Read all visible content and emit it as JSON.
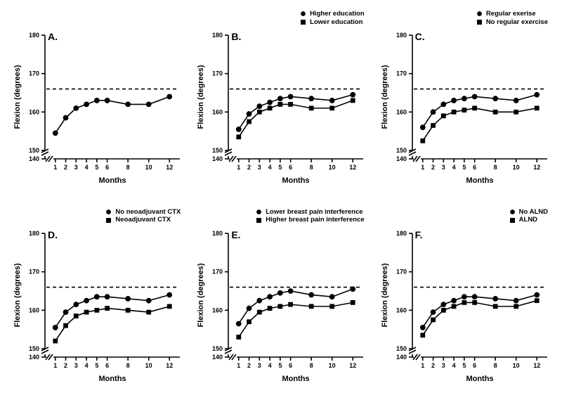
{
  "global": {
    "background_color": "#ffffff",
    "line_color": "#000000",
    "grid_cols": 3,
    "grid_rows": 2,
    "panel_letter_fontsize": 14,
    "legend_fontsize": 9.5,
    "axis_label_fontsize": 11,
    "tick_fontsize": 9,
    "font_weight": "bold",
    "xlabel": "Months",
    "ylabel": "Flexion (degrees)",
    "y": {
      "lim": [
        140,
        180
      ],
      "ticks": [
        140,
        150,
        160,
        170,
        180
      ],
      "break_between": [
        140,
        150
      ],
      "break_style": "double-slash",
      "reference_line": 166,
      "reference_dash": "5,4"
    },
    "x": {
      "lim": [
        0,
        13
      ],
      "ticks": [
        1,
        2,
        3,
        4,
        5,
        6,
        8,
        10,
        12
      ],
      "labels": [
        "1",
        "2",
        "3",
        "4",
        "5",
        "6",
        "8",
        "10",
        "12"
      ]
    },
    "marker_size": 3.4,
    "line_width": 1.6
  },
  "panels": [
    {
      "letter": "A.",
      "legend": null,
      "series": [
        {
          "marker": "circle",
          "label": null,
          "x": [
            1,
            2,
            3,
            4,
            5,
            6,
            8,
            10,
            12
          ],
          "y": [
            154.5,
            158.5,
            161,
            162,
            163,
            163,
            162,
            162,
            164
          ]
        }
      ]
    },
    {
      "letter": "B.",
      "legend": {
        "items": [
          {
            "marker": "circle",
            "label": "Higher education"
          },
          {
            "marker": "square",
            "label": "Lower education"
          }
        ]
      },
      "series": [
        {
          "marker": "circle",
          "label": "Higher education",
          "x": [
            1,
            2,
            3,
            4,
            5,
            6,
            8,
            10,
            12
          ],
          "y": [
            155.5,
            159.5,
            161.5,
            162.5,
            163.5,
            164,
            163.5,
            163,
            164.5
          ]
        },
        {
          "marker": "square",
          "label": "Lower education",
          "x": [
            1,
            2,
            3,
            4,
            5,
            6,
            8,
            10,
            12
          ],
          "y": [
            153.5,
            157.5,
            160,
            161,
            162,
            162,
            161,
            161,
            163
          ]
        }
      ]
    },
    {
      "letter": "C.",
      "legend": {
        "items": [
          {
            "marker": "circle",
            "label": "Regular exerise"
          },
          {
            "marker": "square",
            "label": "No regular exercise"
          }
        ]
      },
      "series": [
        {
          "marker": "circle",
          "label": "Regular exerise",
          "x": [
            1,
            2,
            3,
            4,
            5,
            6,
            8,
            10,
            12
          ],
          "y": [
            156,
            160,
            162,
            163,
            163.5,
            164,
            163.5,
            163,
            164.5
          ]
        },
        {
          "marker": "square",
          "label": "No regular exercise",
          "x": [
            1,
            2,
            3,
            4,
            5,
            6,
            8,
            10,
            12
          ],
          "y": [
            152.5,
            156.5,
            159,
            160,
            160.5,
            161,
            160,
            160,
            161
          ]
        }
      ]
    },
    {
      "letter": "D.",
      "legend": {
        "items": [
          {
            "marker": "circle",
            "label": "No neoadjuvant CTX"
          },
          {
            "marker": "square",
            "label": "Neoadjuvant CTX"
          }
        ]
      },
      "series": [
        {
          "marker": "circle",
          "label": "No neoadjuvant CTX",
          "x": [
            1,
            2,
            3,
            4,
            5,
            6,
            8,
            10,
            12
          ],
          "y": [
            155.5,
            159.5,
            161.5,
            162.5,
            163.5,
            163.5,
            163,
            162.5,
            164
          ]
        },
        {
          "marker": "square",
          "label": "Neoadjuvant CTX",
          "x": [
            1,
            2,
            3,
            4,
            5,
            6,
            8,
            10,
            12
          ],
          "y": [
            152,
            156,
            158.5,
            159.5,
            160,
            160.5,
            160,
            159.5,
            161
          ]
        }
      ]
    },
    {
      "letter": "E.",
      "legend": {
        "items": [
          {
            "marker": "circle",
            "label": "Lower breast pain interference"
          },
          {
            "marker": "square",
            "label": "Higher breast pain interference"
          }
        ]
      },
      "series": [
        {
          "marker": "circle",
          "label": "Lower breast pain interference",
          "x": [
            1,
            2,
            3,
            4,
            5,
            6,
            8,
            10,
            12
          ],
          "y": [
            156.5,
            160.5,
            162.5,
            163.5,
            164.5,
            165,
            164,
            163.5,
            165.5
          ]
        },
        {
          "marker": "square",
          "label": "Higher breast pain interference",
          "x": [
            1,
            2,
            3,
            4,
            5,
            6,
            8,
            10,
            12
          ],
          "y": [
            153,
            157,
            159.5,
            160.5,
            161,
            161.5,
            161,
            161,
            162
          ]
        }
      ]
    },
    {
      "letter": "F.",
      "legend": {
        "items": [
          {
            "marker": "circle",
            "label": "No ALND"
          },
          {
            "marker": "square",
            "label": "ALND"
          }
        ]
      },
      "series": [
        {
          "marker": "circle",
          "label": "No ALND",
          "x": [
            1,
            2,
            3,
            4,
            5,
            6,
            8,
            10,
            12
          ],
          "y": [
            155.5,
            159.5,
            161.5,
            162.5,
            163.5,
            163.5,
            163,
            162.5,
            164
          ]
        },
        {
          "marker": "square",
          "label": "ALND",
          "x": [
            1,
            2,
            3,
            4,
            5,
            6,
            8,
            10,
            12
          ],
          "y": [
            153.5,
            157.5,
            160,
            161,
            162,
            162,
            161,
            161,
            162.5
          ]
        }
      ]
    }
  ]
}
